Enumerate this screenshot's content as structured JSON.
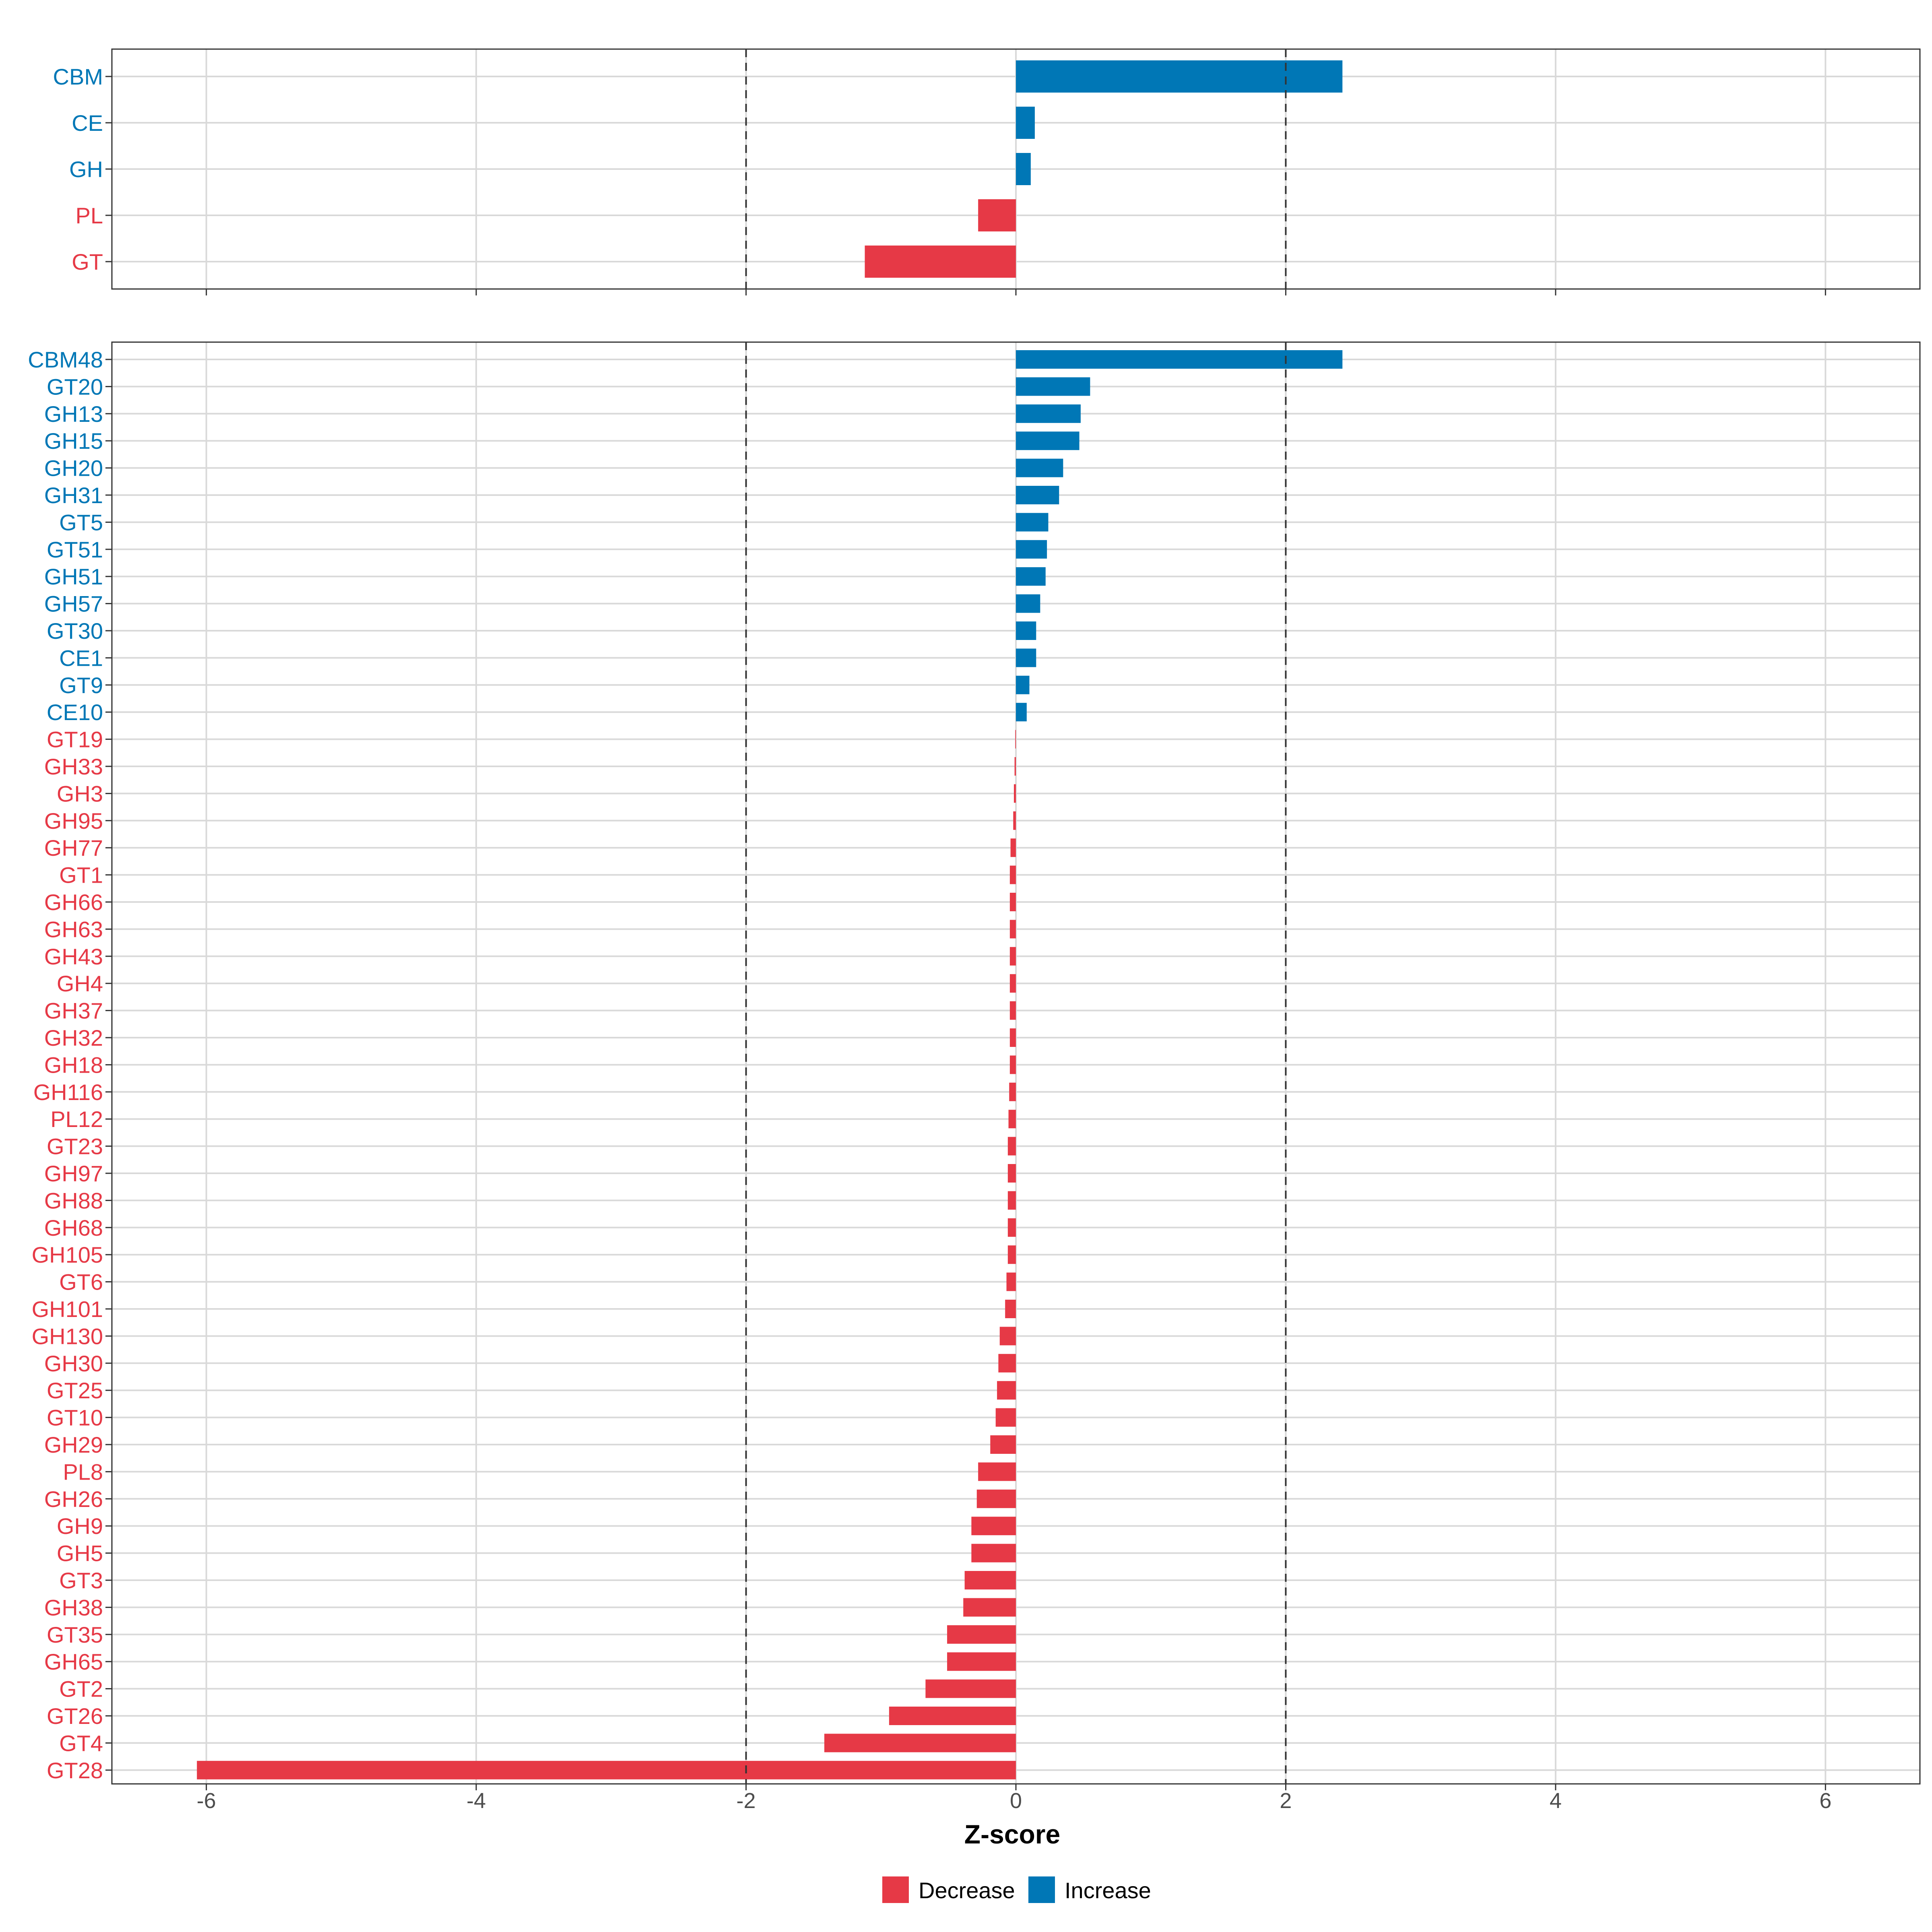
{
  "colors": {
    "decrease": "#E63946",
    "increase": "#0077B6",
    "grid": "#D9D9D9",
    "panel_border": "#333333",
    "threshold_line": "#333333"
  },
  "chart_data": [
    {
      "type": "bar",
      "orientation": "horizontal",
      "panel": "top",
      "categories": [
        "CBM",
        "CE",
        "GH",
        "PL",
        "GT"
      ],
      "values": [
        2.42,
        0.14,
        0.11,
        -0.28,
        -1.12
      ]
    },
    {
      "type": "bar",
      "orientation": "horizontal",
      "panel": "bottom",
      "categories": [
        "CBM48",
        "GT20",
        "GH13",
        "GH15",
        "GH20",
        "GH31",
        "GT5",
        "GT51",
        "GH51",
        "GH57",
        "GT30",
        "CE1",
        "GT9",
        "CE10",
        "GT19",
        "GH33",
        "GH3",
        "GH95",
        "GH77",
        "GT1",
        "GH66",
        "GH63",
        "GH43",
        "GH4",
        "GH37",
        "GH32",
        "GH18",
        "GH116",
        "PL12",
        "GT23",
        "GH97",
        "GH88",
        "GH68",
        "GH105",
        "GT6",
        "GH101",
        "GH130",
        "GH30",
        "GT25",
        "GT10",
        "GH29",
        "PL8",
        "GH26",
        "GH9",
        "GH5",
        "GT3",
        "GH38",
        "GT35",
        "GH65",
        "GT2",
        "GT26",
        "GT4",
        "GT28"
      ],
      "values": [
        2.42,
        0.55,
        0.48,
        0.47,
        0.35,
        0.32,
        0.24,
        0.23,
        0.22,
        0.18,
        0.15,
        0.15,
        0.1,
        0.08,
        -0.005,
        -0.01,
        -0.015,
        -0.02,
        -0.04,
        -0.045,
        -0.045,
        -0.045,
        -0.045,
        -0.045,
        -0.045,
        -0.045,
        -0.045,
        -0.05,
        -0.055,
        -0.06,
        -0.06,
        -0.06,
        -0.06,
        -0.06,
        -0.07,
        -0.08,
        -0.12,
        -0.13,
        -0.14,
        -0.15,
        -0.19,
        -0.28,
        -0.29,
        -0.33,
        -0.33,
        -0.38,
        -0.39,
        -0.51,
        -0.51,
        -0.67,
        -0.94,
        -1.42,
        -6.07
      ]
    }
  ],
  "axis": {
    "xlabel": "Z-score",
    "xlim": [
      -6.7,
      6.7
    ],
    "xticks": [
      -6,
      -4,
      -2,
      0,
      2,
      4,
      6
    ],
    "xtick_labels": [
      "-6",
      "-4",
      "-2",
      "0",
      "2",
      "4",
      "6"
    ],
    "threshold_lines": [
      -2,
      2
    ]
  },
  "legend": {
    "position": "bottom",
    "items": [
      {
        "label": "Decrease",
        "color": "#E63946"
      },
      {
        "label": "Increase",
        "color": "#0077B6"
      }
    ]
  }
}
